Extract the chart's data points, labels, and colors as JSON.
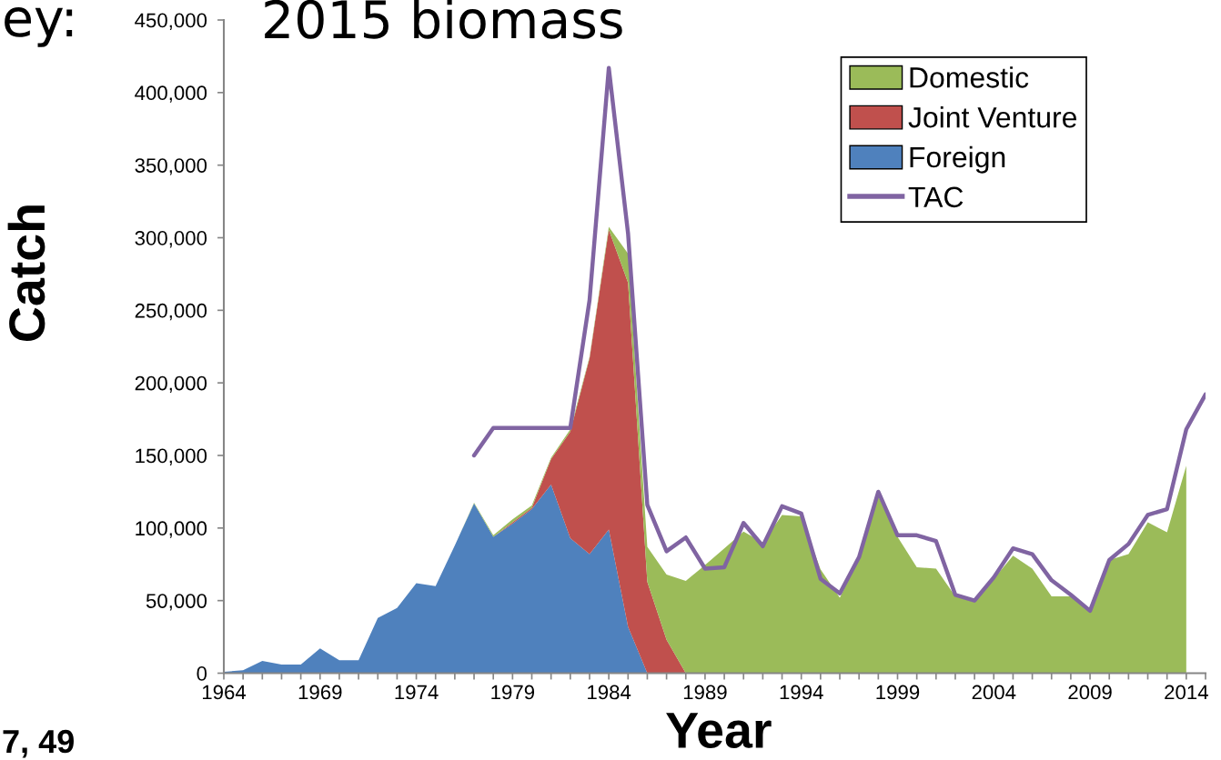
{
  "chart_data": {
    "type": "area",
    "title": "2015 biomass",
    "xlabel": "Year",
    "ylabel": "Catch",
    "annotations": [
      "ey:",
      "7, 49"
    ],
    "stacked": true,
    "legend": "top right",
    "line_style": "solid",
    "x": [
      1964,
      1965,
      1966,
      1967,
      1968,
      1969,
      1970,
      1971,
      1972,
      1973,
      1974,
      1975,
      1976,
      1977,
      1978,
      1979,
      1980,
      1981,
      1982,
      1983,
      1984,
      1985,
      1986,
      1987,
      1988,
      1989,
      1990,
      1991,
      1992,
      1993,
      1994,
      1995,
      1996,
      1997,
      1998,
      1999,
      2000,
      2001,
      2002,
      2003,
      2004,
      2005,
      2006,
      2007,
      2008,
      2009,
      2010,
      2011,
      2012,
      2013,
      2014,
      2015
    ],
    "series": [
      {
        "name": "Foreign",
        "color": "#4f81bd",
        "values": [
          1000,
          2000,
          8500,
          6000,
          6000,
          17000,
          9000,
          9000,
          38000,
          45000,
          62000,
          60000,
          88000,
          117000,
          94000,
          103000,
          113000,
          130000,
          93000,
          82000,
          99000,
          32000,
          0,
          0,
          0,
          0,
          0,
          0,
          0,
          0,
          0,
          0,
          0,
          0,
          0,
          0,
          0,
          0,
          0,
          0,
          0,
          0,
          0,
          0,
          0,
          0,
          0,
          0,
          0,
          0,
          0,
          null
        ]
      },
      {
        "name": "Joint Venture",
        "color": "#c0504d",
        "values": [
          0,
          0,
          0,
          0,
          0,
          0,
          0,
          0,
          0,
          0,
          0,
          0,
          0,
          0,
          0,
          1000,
          1000,
          17500,
          73500,
          135000,
          206500,
          237000,
          63000,
          23000,
          0,
          0,
          0,
          0,
          0,
          0,
          0,
          0,
          0,
          0,
          0,
          0,
          0,
          0,
          0,
          0,
          0,
          0,
          0,
          0,
          0,
          0,
          0,
          0,
          0,
          0,
          0,
          null
        ]
      },
      {
        "name": "Domestic",
        "color": "#9bbb59",
        "values": [
          0,
          0,
          0,
          0,
          0,
          0,
          0,
          0,
          0,
          0,
          0,
          0,
          0,
          500,
          1000,
          2000,
          1500,
          1000,
          1500,
          1000,
          2000,
          20000,
          24000,
          45000,
          63500,
          74500,
          86000,
          97500,
          90000,
          109000,
          108000,
          71500,
          52000,
          80000,
          122000,
          94000,
          73000,
          72000,
          53000,
          49000,
          65000,
          81000,
          72000,
          53000,
          53000,
          43000,
          78000,
          82000,
          104000,
          97000,
          143000,
          null
        ]
      },
      {
        "name": "TAC",
        "type": "line",
        "color": "#8064a2",
        "values": [
          null,
          null,
          null,
          null,
          null,
          null,
          null,
          null,
          null,
          null,
          null,
          null,
          null,
          150000,
          169000,
          169000,
          169000,
          169000,
          169000,
          257000,
          417000,
          303000,
          116000,
          84000,
          93500,
          72000,
          73000,
          103500,
          87500,
          115000,
          110000,
          65000,
          55000,
          80000,
          125000,
          95000,
          95000,
          91000,
          54000,
          50000,
          66000,
          86000,
          82000,
          64000,
          54000,
          43000,
          78000,
          89000,
          109000,
          113000,
          168000,
          192000
        ]
      }
    ],
    "xlim": [
      1964,
      2015
    ],
    "xticks": [
      1964,
      {
        "value": 1965,
        "label": null
      },
      {
        "value": 1966,
        "label": null
      },
      {
        "value": 1967,
        "label": null
      },
      {
        "value": 1968,
        "label": null
      },
      1969,
      {
        "value": 1970,
        "label": null
      },
      {
        "value": 1971,
        "label": null
      },
      {
        "value": 1972,
        "label": null
      },
      {
        "value": 1973,
        "label": null
      },
      1974,
      {
        "value": 1975,
        "label": null
      },
      {
        "value": 1976,
        "label": null
      },
      {
        "value": 1977,
        "label": null
      },
      {
        "value": 1978,
        "label": null
      },
      1979,
      {
        "value": 1980,
        "label": null
      },
      {
        "value": 1981,
        "label": null
      },
      {
        "value": 1982,
        "label": null
      },
      {
        "value": 1983,
        "label": null
      },
      1984,
      {
        "value": 1985,
        "label": null
      },
      {
        "value": 1986,
        "label": null
      },
      {
        "value": 1987,
        "label": null
      },
      {
        "value": 1988,
        "label": null
      },
      1989,
      {
        "value": 1990,
        "label": null
      },
      {
        "value": 1991,
        "label": null
      },
      {
        "value": 1992,
        "label": null
      },
      {
        "value": 1993,
        "label": null
      },
      1994,
      {
        "value": 1995,
        "label": null
      },
      {
        "value": 1996,
        "label": null
      },
      {
        "value": 1997,
        "label": null
      },
      {
        "value": 1998,
        "label": null
      },
      1999,
      {
        "value": 2000,
        "label": null
      },
      {
        "value": 2001,
        "label": null
      },
      {
        "value": 2002,
        "label": null
      },
      {
        "value": 2003,
        "label": null
      },
      2004,
      {
        "value": 2005,
        "label": null
      },
      {
        "value": 2006,
        "label": null
      },
      {
        "value": 2007,
        "label": null
      },
      {
        "value": 2008,
        "label": null
      },
      2009,
      {
        "value": 2010,
        "label": null
      },
      {
        "value": 2011,
        "label": null
      },
      {
        "value": 2012,
        "label": null
      },
      {
        "value": 2013,
        "label": null
      },
      2014,
      {
        "value": 2015,
        "label": null
      }
    ],
    "ylim": [
      0,
      450000
    ],
    "yticks": [
      0,
      {
        "value": 50000,
        "label": "50,000"
      },
      {
        "value": 100000,
        "label": "100,000"
      },
      {
        "value": 150000,
        "label": "150,000"
      },
      {
        "value": 200000,
        "label": "200,000"
      },
      {
        "value": 250000,
        "label": "250,000"
      },
      {
        "value": 300000,
        "label": "300,000"
      },
      {
        "value": 350000,
        "label": "350,000"
      },
      {
        "value": 400000,
        "label": "400,000"
      },
      {
        "value": 450000,
        "label": "450,000"
      }
    ]
  }
}
